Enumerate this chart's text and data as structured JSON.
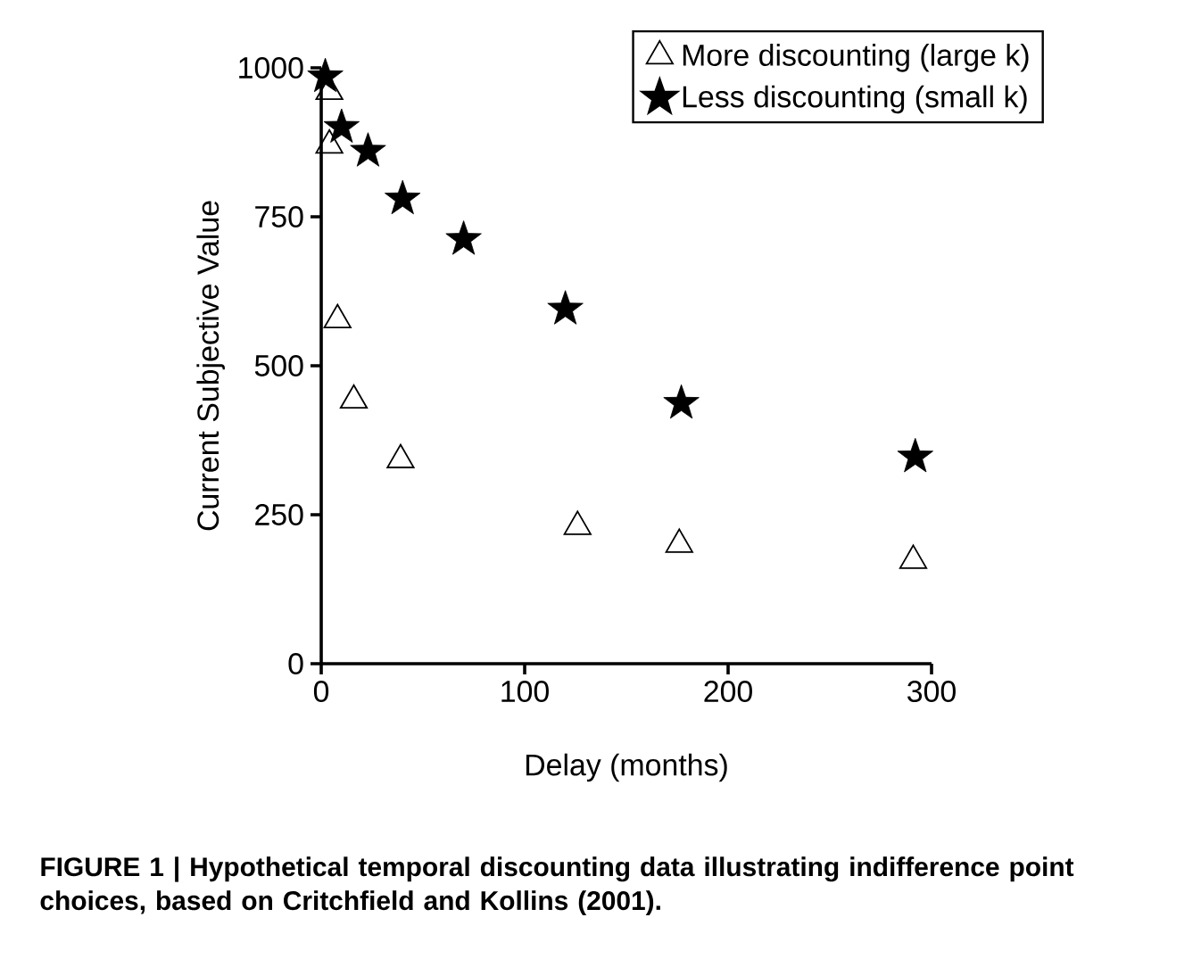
{
  "chart_data": {
    "type": "scatter",
    "xlabel": "Delay (months)",
    "ylabel": "Current Subjective Value",
    "xlim": [
      0,
      300
    ],
    "ylim": [
      0,
      1000
    ],
    "xticks": [
      0,
      100,
      200,
      300
    ],
    "yticks": [
      0,
      250,
      500,
      750,
      1000
    ],
    "grid": false,
    "legend": "top right",
    "series": [
      {
        "name": "More discounting (large k)",
        "color": "#000000",
        "marker": "triangle",
        "x": [
          4,
          4,
          8,
          16,
          39,
          126,
          176,
          291
        ],
        "values": [
          960,
          870,
          577,
          442,
          342,
          230,
          200,
          173
        ]
      },
      {
        "name": "Less discounting (small k)",
        "color": "#000000",
        "marker": "star",
        "x": [
          2,
          10,
          23,
          40,
          70,
          120,
          177,
          292
        ],
        "values": [
          985,
          900,
          860,
          780,
          712,
          595,
          437,
          347
        ]
      }
    ],
    "annotations": [
      "FIGURE 1 | Hypothetical temporal discounting data illustrating indifference point choices, based on Critchfield and Kollins (2001)."
    ]
  }
}
